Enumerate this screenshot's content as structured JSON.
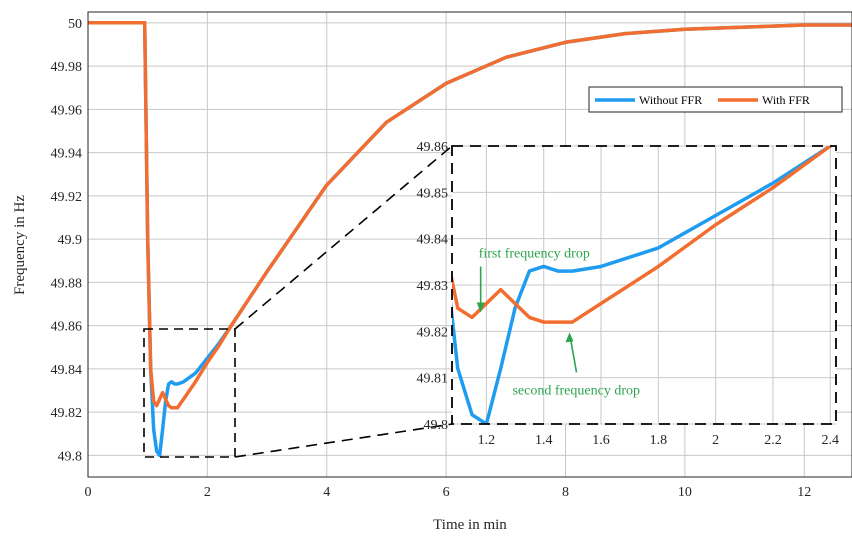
{
  "chart_data": [
    {
      "type": "line",
      "xlabel": "Time in min",
      "ylabel": "Frequency in Hz",
      "xlim": [
        0,
        12.8
      ],
      "ylim": [
        49.79,
        50.005
      ],
      "xticks": [
        0,
        2,
        4,
        6,
        8,
        10,
        12
      ],
      "yticks": [
        49.8,
        49.82,
        49.84,
        49.86,
        49.88,
        49.9,
        49.92,
        49.94,
        49.96,
        49.98,
        50
      ],
      "xtick_labels": [
        "0",
        "2",
        "4",
        "6",
        "8",
        "10",
        "12"
      ],
      "ytick_labels": [
        "49.8",
        "49.82",
        "49.84",
        "49.86",
        "49.88",
        "49.9",
        "49.92",
        "49.94",
        "49.96",
        "49.98",
        "50"
      ],
      "grid": true,
      "legend_position": "top-right",
      "series": [
        {
          "name": "Without FFR",
          "color": "#1f9cf0",
          "x": [
            0,
            0.95,
            1.0,
            1.05,
            1.1,
            1.15,
            1.2,
            1.25,
            1.3,
            1.35,
            1.4,
            1.45,
            1.5,
            1.6,
            1.8,
            2.0,
            2.2,
            2.4,
            3,
            4,
            5,
            6,
            7,
            8,
            9,
            10,
            11,
            12,
            12.8
          ],
          "y": [
            50,
            50,
            49.9,
            49.84,
            49.812,
            49.802,
            49.8,
            49.812,
            49.825,
            49.833,
            49.834,
            49.833,
            49.833,
            49.834,
            49.838,
            49.845,
            49.852,
            49.86,
            49.885,
            49.925,
            49.954,
            49.972,
            49.984,
            49.991,
            49.995,
            49.997,
            49.998,
            49.999,
            49.999
          ]
        },
        {
          "name": "With FFR",
          "color": "#f26d30",
          "x": [
            0,
            0.95,
            1.0,
            1.05,
            1.1,
            1.15,
            1.2,
            1.25,
            1.3,
            1.35,
            1.4,
            1.45,
            1.5,
            1.6,
            1.8,
            2.0,
            2.2,
            2.4,
            3,
            4,
            5,
            6,
            7,
            8,
            9,
            10,
            11,
            12,
            12.8
          ],
          "y": [
            50,
            50,
            49.9,
            49.84,
            49.825,
            49.823,
            49.826,
            49.829,
            49.826,
            49.823,
            49.822,
            49.822,
            49.822,
            49.826,
            49.834,
            49.843,
            49.851,
            49.86,
            49.885,
            49.925,
            49.954,
            49.972,
            49.984,
            49.991,
            49.995,
            49.997,
            49.998,
            49.999,
            49.999
          ]
        }
      ]
    },
    {
      "type": "line",
      "inset": true,
      "xlim": [
        1.08,
        2.42
      ],
      "ylim": [
        49.8,
        49.86
      ],
      "xticks": [
        1.2,
        1.4,
        1.6,
        1.8,
        2,
        2.2,
        2.4
      ],
      "yticks": [
        49.8,
        49.81,
        49.82,
        49.83,
        49.84,
        49.85,
        49.86
      ],
      "xtick_labels": [
        "1.2",
        "1.4",
        "1.6",
        "1.8",
        "2",
        "2.2",
        "2.4"
      ],
      "ytick_labels": [
        "49.8",
        "49.81",
        "49.82",
        "49.83",
        "49.84",
        "49.85",
        "49.86"
      ],
      "grid": true,
      "annotations": [
        {
          "text": "first frequency drop",
          "x": 1.18,
          "y": 49.8232,
          "color": "#2da44e"
        },
        {
          "text": "second frequency drop",
          "x": 1.49,
          "y": 49.8215,
          "color": "#2da44e"
        }
      ]
    }
  ]
}
